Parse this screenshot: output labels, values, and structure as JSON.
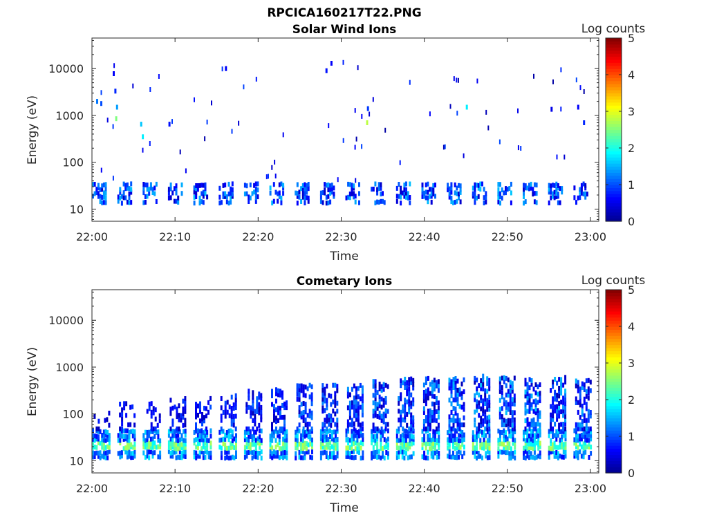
{
  "figure": {
    "title": "RPCICA160217T22.PNG"
  },
  "colors": {
    "colormap": [
      "#00008f",
      "#0000ff",
      "#0080ff",
      "#00ffff",
      "#80ff80",
      "#ffff00",
      "#ff8000",
      "#ff0000",
      "#800000"
    ]
  },
  "chart_data": [
    {
      "type": "heatmap",
      "title": "Solar Wind Ions",
      "xlabel": "Time",
      "ylabel": "Energy (eV)",
      "yscale": "log",
      "ylim": [
        5.5,
        45000
      ],
      "xlim": [
        "22:00",
        "23:01"
      ],
      "xticks": [
        "22:00",
        "22:10",
        "22:20",
        "22:30",
        "22:40",
        "22:50",
        "23:00"
      ],
      "yticks": [
        "10",
        "100",
        "1000",
        "10000"
      ],
      "colorbar": {
        "label": "Log counts",
        "range": [
          0,
          5
        ],
        "ticks": [
          "0",
          "1",
          "2",
          "3",
          "4",
          "5"
        ]
      },
      "description_bands": [
        {
          "energy_range_eV": [
            16,
            30
          ],
          "typical_log_counts": [
            0.3,
            1.5
          ],
          "burst_period_min": 3
        }
      ],
      "isolated_points_min_eV_logcount": [
        [
          0.5,
          2000,
          1.2
        ],
        [
          1.0,
          1800,
          1.0
        ],
        [
          2.5,
          7800,
          0.6
        ],
        [
          2.7,
          3300,
          0.8
        ],
        [
          2.8,
          850,
          2.5
        ],
        [
          2.9,
          1500,
          1.4
        ],
        [
          5.8,
          650,
          1.6
        ],
        [
          6.0,
          350,
          1.8
        ],
        [
          9.2,
          650,
          0.7
        ],
        [
          16.0,
          10000,
          0.6
        ],
        [
          28.1,
          9000,
          0.7
        ],
        [
          28.7,
          13000,
          0.6
        ],
        [
          33.0,
          700,
          2.8
        ],
        [
          33.1,
          1400,
          0.9
        ],
        [
          45.0,
          1500,
          1.8
        ],
        [
          55.2,
          1350,
          0.5
        ],
        [
          58.4,
          1500,
          0.6
        ],
        [
          59.1,
          700,
          0.8
        ]
      ]
    },
    {
      "type": "heatmap",
      "title": "Cometary Ions",
      "xlabel": "Time",
      "ylabel": "Energy (eV)",
      "yscale": "log",
      "ylim": [
        5.5,
        45000
      ],
      "xlim": [
        "22:00",
        "23:01"
      ],
      "xticks": [
        "22:00",
        "22:10",
        "22:20",
        "22:30",
        "22:40",
        "22:50",
        "23:00"
      ],
      "yticks": [
        "10",
        "100",
        "1000",
        "10000"
      ],
      "colorbar": {
        "label": "Log counts",
        "range": [
          0,
          5
        ],
        "ticks": [
          "0",
          "1",
          "2",
          "3",
          "4",
          "5"
        ]
      },
      "description_bands": [
        {
          "energy_range_eV": [
            12,
            45
          ],
          "typical_log_counts": [
            1.5,
            2.8
          ],
          "burst_period_min": 3
        },
        {
          "energy_range_eV": [
            50,
            700
          ],
          "typical_log_counts": [
            0.2,
            1.2
          ],
          "note": "plumes growing after 22:35"
        }
      ]
    }
  ]
}
